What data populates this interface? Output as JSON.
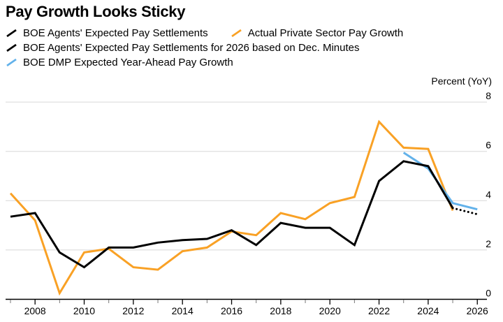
{
  "title": "Pay Growth Looks Sticky",
  "legend": {
    "items": [
      {
        "label": "BOE Agents' Expected Pay Settlements",
        "color": "#000000",
        "style": "solid"
      },
      {
        "label": "Actual Private Sector Pay Growth",
        "color": "#F9A125",
        "style": "solid"
      },
      {
        "label": "BOE Agents' Expected Pay Settlements for 2026 based on Dec. Minutes",
        "color": "#000000",
        "style": "dotted"
      },
      {
        "label": "BOE DMP Expected Year-Ahead Pay Growth",
        "color": "#63B2EA",
        "style": "solid"
      }
    ]
  },
  "colors": {
    "orange": "#F9A125",
    "blue": "#63B2EA",
    "black": "#000000",
    "gridline": "#d7d7d7",
    "axis": "#000000",
    "minor_tick": "#777777"
  },
  "chart_data": {
    "type": "line",
    "title": "Pay Growth Looks Sticky",
    "xlabel": "",
    "ylabel": "Percent (YoY)",
    "ylim": [
      0,
      8
    ],
    "yticks": [
      0,
      2,
      4,
      6,
      8
    ],
    "x_range": [
      2007,
      2026
    ],
    "xticks_labeled": [
      2008,
      2010,
      2012,
      2014,
      2016,
      2018,
      2020,
      2022,
      2024,
      2026
    ],
    "grid": "horizontal",
    "legend_position": "top-left",
    "series": [
      {
        "name": "Actual Private Sector Pay Growth",
        "color": "#F9A125",
        "style": "solid",
        "x": [
          2007,
          2008,
          2009,
          2010,
          2011,
          2012,
          2013,
          2014,
          2015,
          2016,
          2017,
          2018,
          2019,
          2020,
          2021,
          2022,
          2023,
          2024,
          2025
        ],
        "values": [
          4.3,
          3.2,
          0.25,
          1.9,
          2.05,
          1.3,
          1.2,
          1.95,
          2.1,
          2.75,
          2.6,
          3.5,
          3.25,
          3.9,
          4.15,
          7.2,
          6.15,
          6.1,
          3.6
        ]
      },
      {
        "name": "BOE DMP Expected Year-Ahead Pay Growth",
        "color": "#63B2EA",
        "style": "solid",
        "x": [
          2023,
          2024,
          2025,
          2026
        ],
        "values": [
          5.95,
          5.3,
          3.9,
          3.65
        ]
      },
      {
        "name": "BOE Agents' Expected Pay Settlements",
        "color": "#000000",
        "style": "solid",
        "x": [
          2007,
          2008,
          2009,
          2010,
          2011,
          2012,
          2013,
          2014,
          2015,
          2016,
          2017,
          2018,
          2019,
          2020,
          2021,
          2022,
          2023,
          2024,
          2025
        ],
        "values": [
          3.35,
          3.5,
          1.9,
          1.3,
          2.1,
          2.1,
          2.3,
          2.4,
          2.45,
          2.8,
          2.2,
          3.1,
          2.9,
          2.9,
          2.2,
          4.8,
          5.6,
          5.4,
          3.7
        ]
      },
      {
        "name": "BOE Agents' Expected Pay Settlements for 2026 based on Dec. Minutes",
        "color": "#000000",
        "style": "dotted",
        "x": [
          2025,
          2026
        ],
        "values": [
          3.7,
          3.45
        ]
      }
    ]
  }
}
